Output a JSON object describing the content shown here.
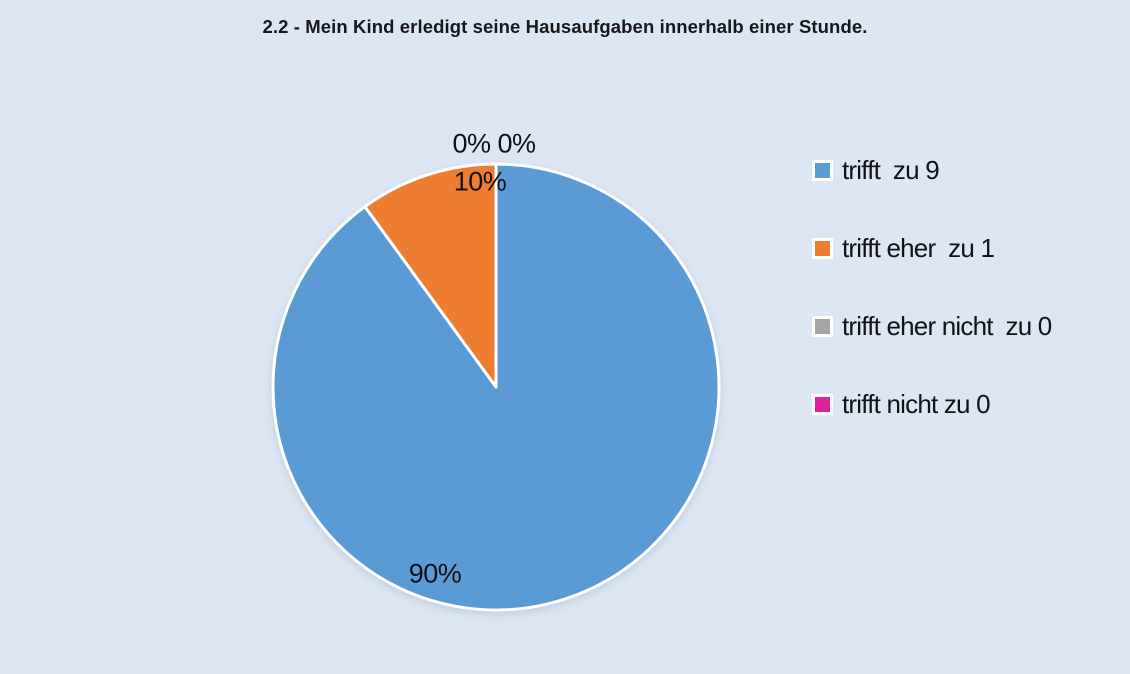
{
  "chart_data": {
    "type": "pie",
    "title": "2.2 - Mein Kind erledigt seine Hausaufgaben innerhalb einer Stunde.",
    "slices": [
      {
        "label": "trifft  zu 9",
        "value": 9,
        "pct": 90,
        "color": "#5B9BD5"
      },
      {
        "label": "trifft eher  zu 1",
        "value": 1,
        "pct": 10,
        "color": "#ED7D31"
      },
      {
        "label": "trifft eher nicht  zu 0",
        "value": 0,
        "pct": 0,
        "color": "#A6A6A6"
      },
      {
        "label": "trifft nicht zu 0",
        "value": 0,
        "pct": 0,
        "color": "#E0219E"
      }
    ],
    "data_labels": {
      "blue": "90%",
      "orange": "10%",
      "zeros": "0% 0%"
    },
    "start_angle_deg": 0,
    "direction": "clockwise",
    "legend_position": "right",
    "background": "#DDE7F4",
    "slice_border_color": "#FFFFFF",
    "label_color": "#121216"
  }
}
